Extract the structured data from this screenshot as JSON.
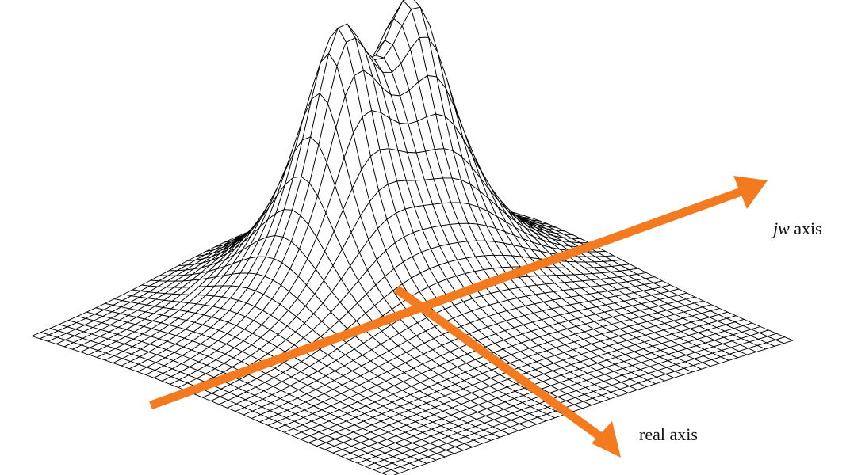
{
  "labels": {
    "jw_axis_italic": "jw",
    "jw_axis_suffix": " axis",
    "real_axis": "real axis"
  },
  "colors": {
    "axis_arrow": "#f47a20",
    "mesh_line": "#000000",
    "surface_fill": "#ffffff"
  },
  "surface": {
    "description_type": "3d-wireframe-surface",
    "peak_count": 2
  }
}
